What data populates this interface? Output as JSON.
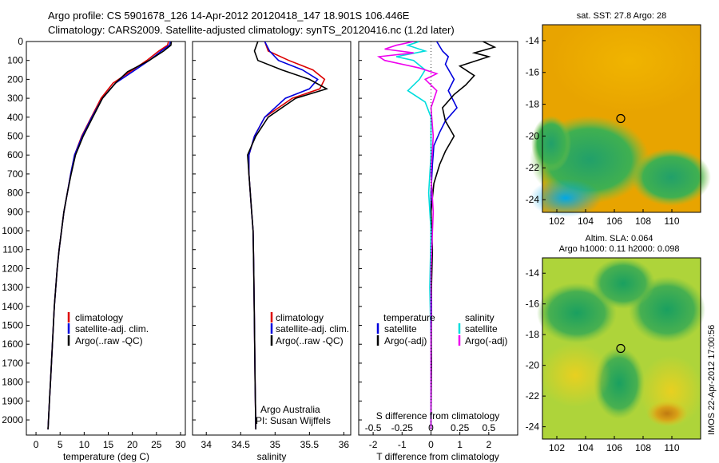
{
  "header": {
    "line1": "Argo profile: CS 5901678_126 14-Apr-2012 20120418_147 18.901S 106.446E",
    "line2": "Climatology: CARS2009. Satellite-adjusted climatology: synTS_20120416.nc (1.2d later)"
  },
  "colors": {
    "climatology": "#dd0000",
    "satellite": "#0000dd",
    "argo": "#000000",
    "salinity_satellite": "#00dddd",
    "salinity_argo": "#ee00ee"
  },
  "legend": {
    "climatology": "climatology",
    "satellite_adj": "satellite-adj. clim.",
    "argo_raw": "Argo(..raw -QC)",
    "diff_temperature_title": "temperature",
    "diff_salinity_title": "salinity",
    "diff_satellite": "satellite",
    "diff_argo": "Argo(-adj)"
  },
  "credits": {
    "line1": "Argo Australia",
    "line2": "PI: Susan Wijffels"
  },
  "stamp": "IMOS 22-Apr-2012 17:00:56",
  "maps": {
    "sst_title": "sat. SST: 27.8 Argo: 28",
    "sla_title1": "Altim. SLA: 0.064",
    "sla_title2": "Argo h1000: 0.11 h2000: 0.098",
    "x_ticks": [
      "102",
      "104",
      "106",
      "108",
      "110"
    ],
    "y_ticks": [
      "-14",
      "-16",
      "-18",
      "-20",
      "-22",
      "-24"
    ],
    "argo_lon": 106.446,
    "argo_lat": -18.901
  },
  "chart_data": [
    {
      "type": "line",
      "name": "temperature",
      "xlabel": "temperature (deg C)",
      "ylabel": "",
      "xlim": [
        -2,
        31
      ],
      "ylim": [
        2080,
        0
      ],
      "x_ticks": [
        0,
        5,
        10,
        15,
        20,
        25,
        30
      ],
      "y_ticks": [
        0,
        100,
        200,
        300,
        400,
        500,
        600,
        700,
        800,
        900,
        1000,
        1100,
        1200,
        1300,
        1400,
        1500,
        1600,
        1700,
        1800,
        1900,
        2000
      ],
      "series": [
        {
          "name": "climatology",
          "points": [
            [
              27.5,
              0
            ],
            [
              27.3,
              20
            ],
            [
              25.5,
              50
            ],
            [
              23,
              100
            ],
            [
              19.5,
              160
            ],
            [
              16,
              220
            ],
            [
              13.5,
              300
            ],
            [
              11.5,
              400
            ],
            [
              9.5,
              500
            ],
            [
              8,
              600
            ],
            [
              7.2,
              700
            ],
            [
              6.5,
              800
            ],
            [
              5.8,
              900
            ],
            [
              5.3,
              1000
            ],
            [
              4.8,
              1100
            ],
            [
              4.4,
              1200
            ],
            [
              4.1,
              1300
            ],
            [
              3.8,
              1400
            ],
            [
              3.6,
              1500
            ],
            [
              3.4,
              1600
            ],
            [
              3.2,
              1700
            ],
            [
              3.0,
              1800
            ],
            [
              2.8,
              1900
            ],
            [
              2.6,
              2000
            ],
            [
              2.5,
              2050
            ]
          ]
        },
        {
          "name": "satellite-adj. clim.",
          "points": [
            [
              27.9,
              0
            ],
            [
              27.7,
              20
            ],
            [
              26,
              50
            ],
            [
              23.5,
              100
            ],
            [
              20,
              160
            ],
            [
              16.5,
              220
            ],
            [
              13.8,
              300
            ],
            [
              11.6,
              400
            ],
            [
              9.6,
              500
            ],
            [
              8,
              600
            ],
            [
              7.2,
              700
            ],
            [
              6.5,
              800
            ],
            [
              5.8,
              900
            ],
            [
              5.3,
              1000
            ],
            [
              4.8,
              1100
            ],
            [
              4.4,
              1200
            ],
            [
              4.1,
              1300
            ],
            [
              3.8,
              1400
            ],
            [
              3.6,
              1500
            ],
            [
              3.4,
              1600
            ],
            [
              3.2,
              1700
            ],
            [
              3.0,
              1800
            ],
            [
              2.8,
              1900
            ],
            [
              2.6,
              2000
            ],
            [
              2.5,
              2050
            ]
          ]
        },
        {
          "name": "Argo(..raw -QC)",
          "points": [
            [
              28.1,
              0
            ],
            [
              28,
              20
            ],
            [
              26.5,
              50
            ],
            [
              23.5,
              100
            ],
            [
              19,
              160
            ],
            [
              16.5,
              220
            ],
            [
              13.8,
              300
            ],
            [
              11.8,
              400
            ],
            [
              9.8,
              500
            ],
            [
              8.2,
              600
            ],
            [
              7.3,
              700
            ],
            [
              6.5,
              800
            ],
            [
              5.8,
              900
            ],
            [
              5.3,
              1000
            ],
            [
              4.8,
              1100
            ],
            [
              4.4,
              1200
            ],
            [
              4.1,
              1300
            ],
            [
              3.8,
              1400
            ],
            [
              3.6,
              1500
            ],
            [
              3.4,
              1600
            ],
            [
              3.2,
              1700
            ],
            [
              3.0,
              1800
            ],
            [
              2.8,
              1900
            ],
            [
              2.6,
              2000
            ],
            [
              2.5,
              2050
            ]
          ]
        }
      ]
    },
    {
      "type": "line",
      "name": "salinity",
      "xlabel": "salinity",
      "ylabel": "",
      "xlim": [
        33.8,
        36.1
      ],
      "ylim": [
        2080,
        0
      ],
      "x_ticks": [
        34,
        34.5,
        35,
        35.5,
        36
      ],
      "series": [
        {
          "name": "climatology",
          "points": [
            [
              34.85,
              0
            ],
            [
              34.9,
              50
            ],
            [
              35.2,
              100
            ],
            [
              35.55,
              150
            ],
            [
              35.72,
              200
            ],
            [
              35.65,
              250
            ],
            [
              35.25,
              300
            ],
            [
              34.85,
              400
            ],
            [
              34.7,
              500
            ],
            [
              34.62,
              600
            ],
            [
              34.62,
              700
            ],
            [
              34.64,
              800
            ],
            [
              34.66,
              900
            ],
            [
              34.68,
              1000
            ],
            [
              34.69,
              1200
            ],
            [
              34.7,
              1500
            ],
            [
              34.71,
              1800
            ],
            [
              34.72,
              2050
            ]
          ]
        },
        {
          "name": "satellite-adj. clim.",
          "points": [
            [
              34.85,
              0
            ],
            [
              34.92,
              50
            ],
            [
              35.05,
              100
            ],
            [
              35.4,
              150
            ],
            [
              35.62,
              200
            ],
            [
              35.5,
              250
            ],
            [
              35.15,
              300
            ],
            [
              34.85,
              400
            ],
            [
              34.7,
              500
            ],
            [
              34.62,
              600
            ],
            [
              34.62,
              700
            ],
            [
              34.64,
              800
            ],
            [
              34.66,
              900
            ],
            [
              34.68,
              1000
            ],
            [
              34.69,
              1200
            ],
            [
              34.7,
              1500
            ],
            [
              34.71,
              1800
            ],
            [
              34.72,
              2050
            ]
          ]
        },
        {
          "name": "Argo(..raw -QC)",
          "points": [
            [
              34.75,
              0
            ],
            [
              34.7,
              50
            ],
            [
              34.75,
              100
            ],
            [
              35.1,
              150
            ],
            [
              35.5,
              200
            ],
            [
              35.75,
              250
            ],
            [
              35.3,
              300
            ],
            [
              34.9,
              400
            ],
            [
              34.72,
              500
            ],
            [
              34.6,
              600
            ],
            [
              34.62,
              700
            ],
            [
              34.64,
              800
            ],
            [
              34.66,
              900
            ],
            [
              34.68,
              1000
            ],
            [
              34.69,
              1200
            ],
            [
              34.7,
              1500
            ],
            [
              34.71,
              1800
            ],
            [
              34.72,
              2050
            ]
          ]
        }
      ]
    },
    {
      "type": "line",
      "name": "difference from climatology",
      "xlabel": "T difference from climatology",
      "x2label": "S difference from climatology",
      "ylabel": "",
      "xlim": [
        -2.5,
        3
      ],
      "x2lim": [
        -0.625,
        0.75
      ],
      "ylim": [
        2080,
        0
      ],
      "x_ticks": [
        -2,
        -1,
        0,
        1,
        2
      ],
      "x2_ticks": [
        -0.5,
        -0.25,
        0,
        0.25,
        0.5
      ],
      "series": [
        {
          "name": "temperature satellite",
          "axis": "T",
          "points": [
            [
              0.2,
              0
            ],
            [
              0.4,
              50
            ],
            [
              0.6,
              80
            ],
            [
              0.5,
              120
            ],
            [
              0.8,
              200
            ],
            [
              0.6,
              260
            ],
            [
              0.9,
              350
            ],
            [
              0.5,
              420
            ],
            [
              0.3,
              480
            ],
            [
              0.1,
              550
            ],
            [
              0.05,
              650
            ],
            [
              0,
              800
            ],
            [
              0,
              1100
            ],
            [
              0.02,
              1400
            ],
            [
              0,
              1700
            ],
            [
              0,
              2050
            ]
          ]
        },
        {
          "name": "temperature Argo(-adj)",
          "axis": "T",
          "points": [
            [
              1.8,
              0
            ],
            [
              2.2,
              30
            ],
            [
              1.5,
              60
            ],
            [
              2.0,
              80
            ],
            [
              1.0,
              130
            ],
            [
              1.5,
              180
            ],
            [
              1.2,
              230
            ],
            [
              0.8,
              280
            ],
            [
              0.4,
              350
            ],
            [
              0.5,
              420
            ],
            [
              0.8,
              500
            ],
            [
              0.5,
              580
            ],
            [
              0.3,
              650
            ],
            [
              0.1,
              750
            ],
            [
              0,
              900
            ],
            [
              0.05,
              1100
            ],
            [
              0,
              1400
            ],
            [
              0.02,
              1700
            ],
            [
              0,
              2050
            ]
          ]
        },
        {
          "name": "salinity satellite",
          "axis": "S",
          "points": [
            [
              -0.1,
              0
            ],
            [
              -0.2,
              20
            ],
            [
              -0.05,
              50
            ],
            [
              -0.3,
              80
            ],
            [
              -0.15,
              100
            ],
            [
              -0.05,
              150
            ],
            [
              -0.1,
              200
            ],
            [
              -0.2,
              260
            ],
            [
              -0.05,
              320
            ],
            [
              0,
              400
            ],
            [
              0,
              600
            ],
            [
              -0.02,
              800
            ],
            [
              0,
              1000
            ],
            [
              -0.01,
              1300
            ],
            [
              0,
              1600
            ],
            [
              0,
              2050
            ]
          ]
        },
        {
          "name": "salinity Argo(-adj)",
          "axis": "S",
          "points": [
            [
              -0.15,
              0
            ],
            [
              -0.3,
              20
            ],
            [
              -0.4,
              40
            ],
            [
              -0.15,
              60
            ],
            [
              -0.45,
              80
            ],
            [
              -0.4,
              100
            ],
            [
              -0.1,
              140
            ],
            [
              0.05,
              170
            ],
            [
              -0.05,
              200
            ],
            [
              0.05,
              260
            ],
            [
              0,
              350
            ],
            [
              0.02,
              500
            ],
            [
              0,
              700
            ],
            [
              0.02,
              900
            ],
            [
              0,
              1200
            ],
            [
              0,
              2050
            ]
          ]
        }
      ]
    }
  ]
}
